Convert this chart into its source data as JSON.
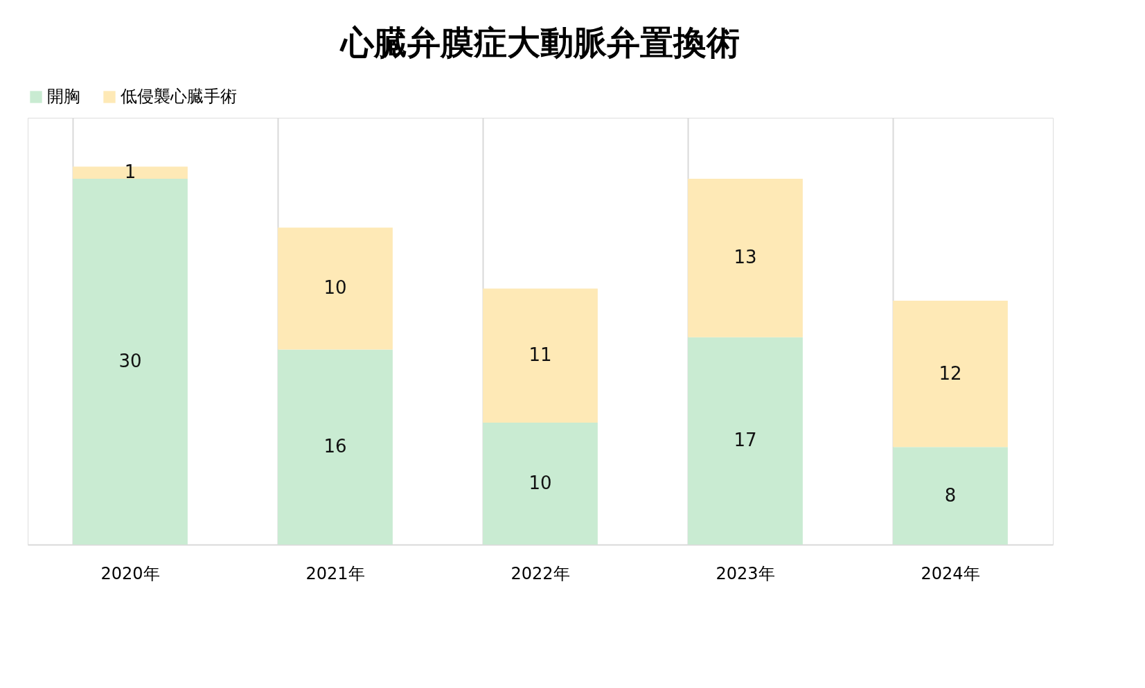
{
  "chart_data": {
    "type": "bar",
    "title": "心臓弁膜症大動脈弁置換術",
    "categories": [
      "2020年",
      "2021年",
      "2022年",
      "2023年",
      "2024年"
    ],
    "series": [
      {
        "name": "開胸",
        "color": "#c9ebd2",
        "values": [
          30,
          16,
          10,
          17,
          8
        ]
      },
      {
        "name": "低侵襲心臓手術",
        "color": "#fee9b6",
        "values": [
          1,
          10,
          11,
          13,
          12
        ]
      }
    ],
    "stacked": true,
    "data_labels": true,
    "grid": "x",
    "legend": "top",
    "tick_labels": "x"
  }
}
